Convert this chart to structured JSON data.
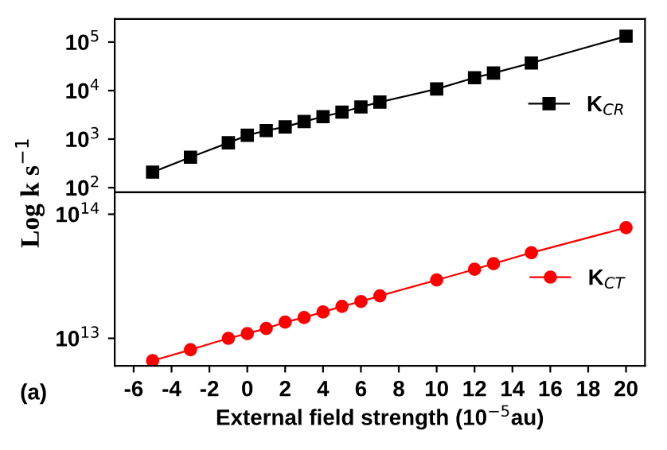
{
  "chart_data": [
    {
      "type": "line",
      "ylabel": "Log k s$^{−1}$",
      "x": [
        -5,
        -3,
        -1,
        0,
        1,
        2,
        3,
        4,
        5,
        6,
        7,
        10,
        12,
        13,
        15,
        20
      ],
      "series": [
        {
          "name": "K$_{CR}$",
          "color": "#000000",
          "values": [
            209,
            424,
            840,
            1200,
            1500,
            1790,
            2300,
            2900,
            3600,
            4600,
            5800,
            10800,
            18400,
            23000,
            37000,
            132000
          ]
        }
      ],
      "log": true,
      "xlim": [
        -7,
        21
      ],
      "xticks": [
        -6,
        -4,
        -2,
        0,
        2,
        4,
        6,
        8,
        10,
        12,
        14,
        16,
        18,
        20
      ],
      "ylim": [
        80,
        300000
      ],
      "yticks": [
        {
          "value": 100,
          "label": "10$^{2}$"
        },
        {
          "value": 1000,
          "label": "10$^{3}$"
        },
        {
          "value": 10000,
          "label": "10$^{4}$"
        },
        {
          "value": 100000,
          "label": "10$^{5}$"
        }
      ],
      "tick_labels": "y",
      "marker": "square",
      "legend": "right"
    },
    {
      "type": "line",
      "xlabel": "External field strength (10$^{−5}$au)",
      "annotations": [
        "(a)"
      ],
      "x": [
        -5,
        -3,
        -1,
        0,
        1,
        2,
        3,
        4,
        5,
        6,
        7,
        10,
        12,
        13,
        15,
        20
      ],
      "series": [
        {
          "name": "K$_{CT}$",
          "color": "#ff0000",
          "values": [
            6600000000000.0,
            8100000000000.0,
            10000000000000.0,
            10900000000000.0,
            12000000000000.0,
            13500000000000.0,
            14700000000000.0,
            16300000000000.0,
            18100000000000.0,
            19800000000000.0,
            22000000000000.0,
            29500000000000.0,
            36000000000000.0,
            40000000000000.0,
            49000000000000.0,
            78000000000000.0
          ]
        }
      ],
      "log": true,
      "xlim": [
        -7,
        21
      ],
      "xticks": [
        -6,
        -4,
        -2,
        0,
        2,
        4,
        6,
        8,
        10,
        12,
        14,
        16,
        18,
        20
      ],
      "ylim": [
        6000000000000.0,
        150000000000000.0
      ],
      "yticks": [
        {
          "value": 10000000000000.0,
          "label": "10$^{13}$"
        },
        {
          "value": 100000000000000.0,
          "label": "10$^{14}$"
        }
      ],
      "marker": "circle",
      "legend": "right"
    }
  ]
}
